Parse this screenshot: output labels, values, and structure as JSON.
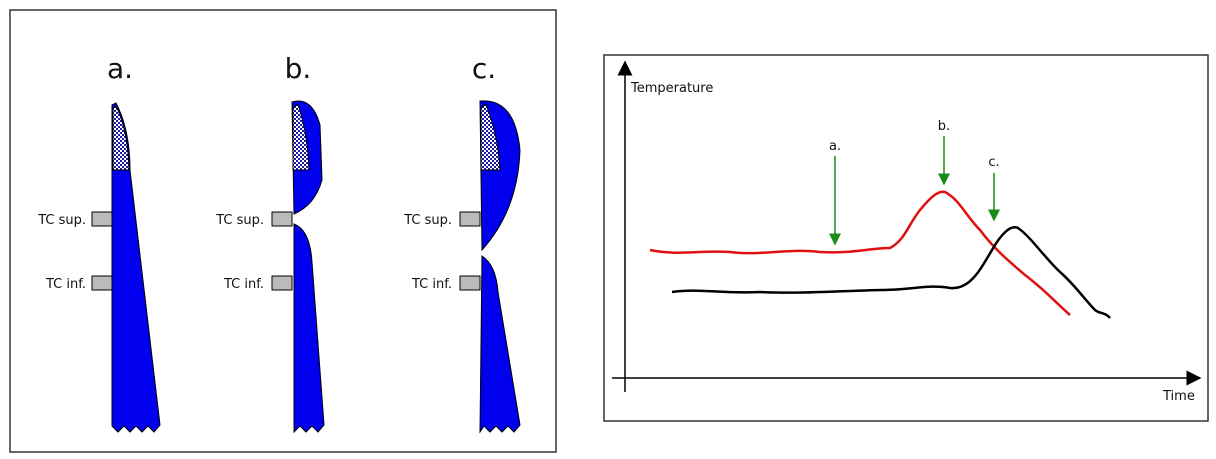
{
  "left_figure": {
    "columns": [
      {
        "label": "a.",
        "tc_sup": "TC sup.",
        "tc_inf": "TC inf."
      },
      {
        "label": "b.",
        "tc_sup": "TC sup.",
        "tc_inf": "TC inf."
      },
      {
        "label": "c.",
        "tc_sup": "TC sup.",
        "tc_inf": "TC inf."
      }
    ]
  },
  "right_figure": {
    "y_axis": "Temperature",
    "x_axis": "Time",
    "markers": [
      "a.",
      "b.",
      "c."
    ]
  }
}
